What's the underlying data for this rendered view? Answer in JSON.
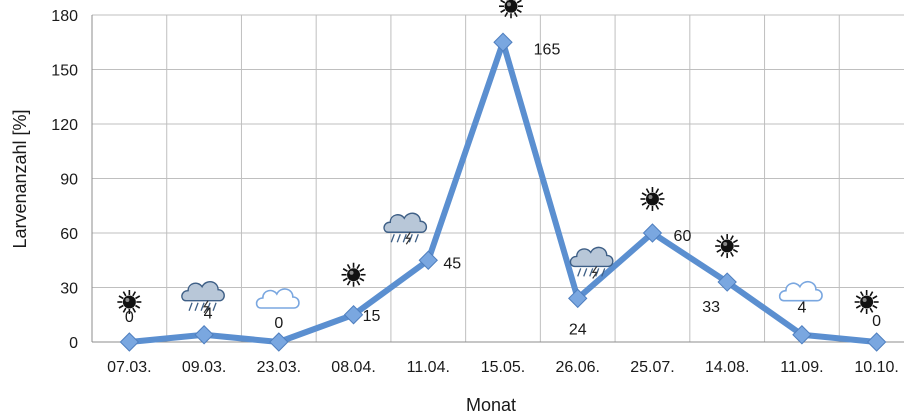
{
  "chart_data": {
    "type": "line",
    "xlabel": "Monat",
    "ylabel": "Larvenanzahl [%]",
    "ylim": [
      0,
      180
    ],
    "yticks": [
      0,
      30,
      60,
      90,
      120,
      150,
      180
    ],
    "grid": true,
    "legend": "none",
    "colors": {
      "line": "#5b8fd0",
      "marker": "#7aa7e0",
      "grid": "#bfbfbf"
    },
    "categories": [
      "07.03.",
      "09.03.",
      "23.03.",
      "08.04.",
      "11.04.",
      "15.05.",
      "26.06.",
      "25.07.",
      "14.08.",
      "11.09.",
      "10.10."
    ],
    "series": [
      {
        "values": [
          0,
          4,
          0,
          15,
          45,
          165,
          24,
          60,
          33,
          4,
          0
        ],
        "labels": [
          "0",
          "4",
          "0",
          "15",
          "45",
          "165",
          "24",
          "60",
          "33",
          "4",
          "0"
        ],
        "weather_icons": [
          "sun-icon",
          "storm-cloud-icon",
          "cloud-icon",
          "sun-icon",
          "storm-cloud-icon",
          "sun-icon",
          "storm-cloud-icon",
          "sun-icon",
          "sun-icon",
          "cloud-icon",
          "sun-icon"
        ]
      }
    ]
  }
}
